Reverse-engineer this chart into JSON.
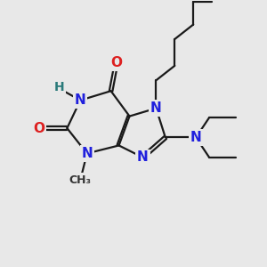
{
  "bg": "#e8e8e8",
  "bc": "#1a1a1a",
  "lw": 1.6,
  "dbo": 0.06,
  "Nc": "#2020dd",
  "Oc": "#dd2020",
  "Hc": "#2a7a7a",
  "fs": 11,
  "sfs": 9,
  "figsize": [
    3.0,
    3.0
  ],
  "dpi": 100,
  "xlim": [
    0,
    10
  ],
  "ylim": [
    0,
    10
  ]
}
